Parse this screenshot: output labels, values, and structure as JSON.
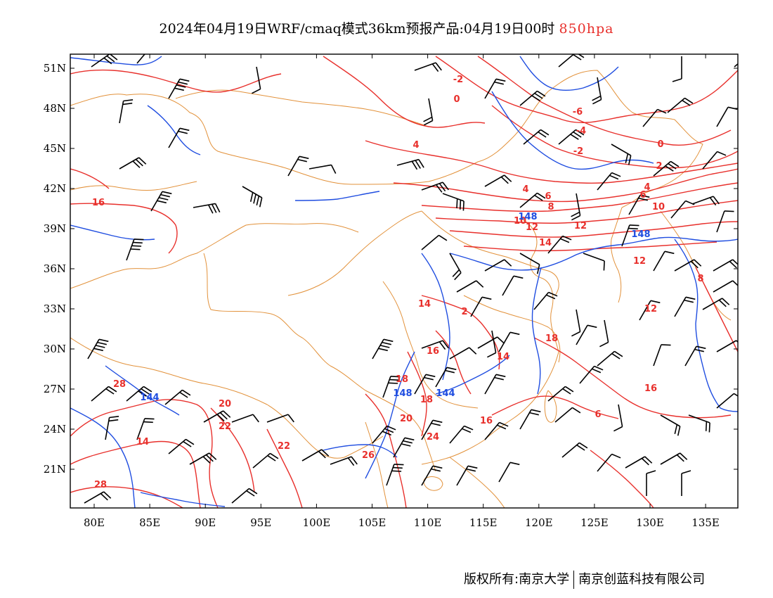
{
  "header": {
    "title": "2024年04月19日WRF/cmaq模式36km预报产品:04月19日00时",
    "level": "850hpa"
  },
  "map": {
    "lon_ticks": [
      "80E",
      "85E",
      "90E",
      "95E",
      "100E",
      "105E",
      "110E",
      "115E",
      "120E",
      "125E",
      "130E",
      "135E"
    ],
    "lat_ticks": [
      "51N",
      "48N",
      "45N",
      "42N",
      "39N",
      "36N",
      "33N",
      "30N",
      "27N",
      "24N",
      "21N"
    ],
    "colors": {
      "temperature": "#e8302c",
      "height": "#1f4de0",
      "boundary": "#e2913a",
      "wind": "#000000"
    },
    "temperature_labels": [
      "-2",
      "0",
      "-6",
      "-4",
      "-2",
      "0",
      "2",
      "4",
      "6",
      "10",
      "12",
      "14",
      "12",
      "8",
      "12",
      "16",
      "16",
      "18",
      "18",
      "20",
      "20",
      "22",
      "22",
      "24",
      "26",
      "28",
      "28",
      "14",
      "16",
      "6",
      "14",
      "18",
      "16",
      "2",
      "4",
      "6",
      "8",
      "10",
      "12",
      "14",
      "4"
    ],
    "height_labels": [
      "148",
      "148",
      "148",
      "144",
      "144"
    ]
  },
  "footer": {
    "left": "版权所有:南京大学",
    "right": "南京创蓝科技有限公司"
  }
}
